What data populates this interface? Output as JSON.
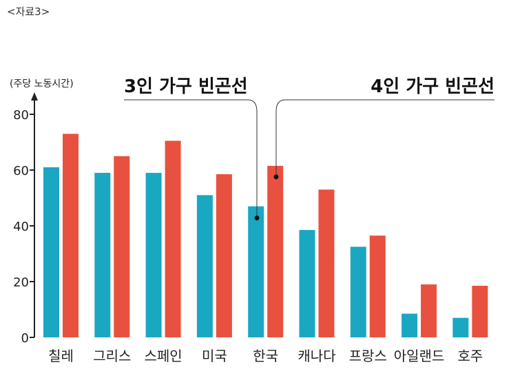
{
  "header_label": "<자료3>",
  "chart_data": {
    "type": "bar",
    "ylabel": "(주당 노동시간)",
    "ylim": [
      0,
      80
    ],
    "yticks": [
      0,
      20,
      40,
      60,
      80
    ],
    "categories": [
      "칠레",
      "그리스",
      "스페인",
      "미국",
      "한국",
      "캐나다",
      "프랑스",
      "아일랜드",
      "호주"
    ],
    "series": [
      {
        "name": "3인 가구 빈곤선",
        "color": "#1aa7c2",
        "values": [
          61,
          59,
          59,
          51,
          47,
          38.5,
          32.5,
          8.5,
          7
        ]
      },
      {
        "name": "4인 가구 빈곤선",
        "color": "#e8513f",
        "values": [
          73,
          65,
          70.5,
          58.5,
          61.5,
          53,
          36.5,
          19,
          18.5
        ]
      }
    ],
    "grid": false,
    "legend": "callout-top"
  }
}
